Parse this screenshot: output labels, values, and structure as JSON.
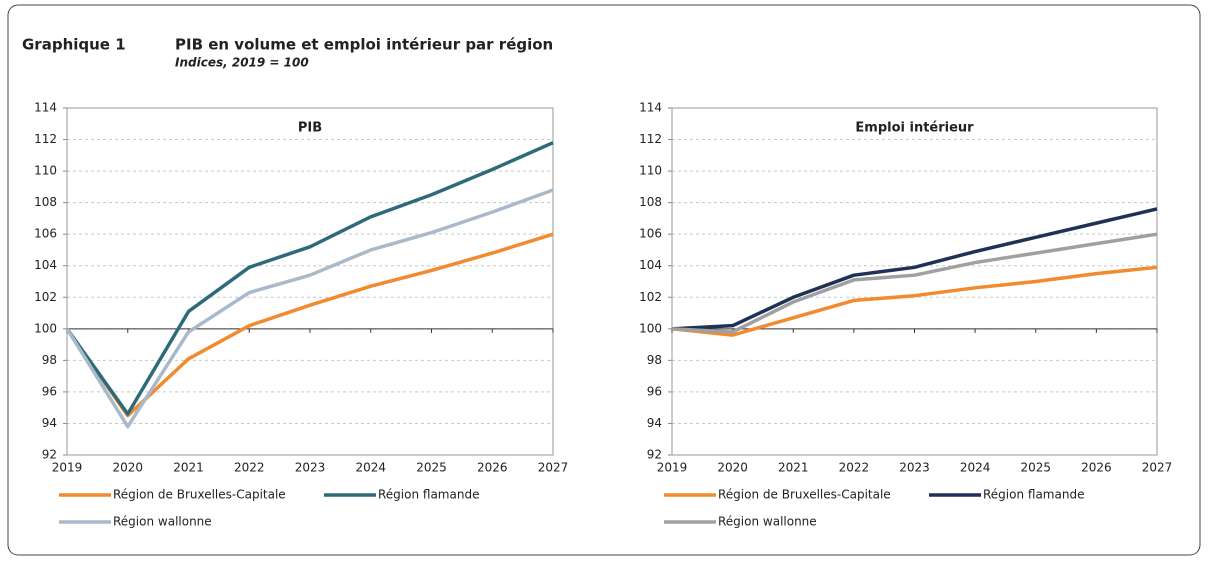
{
  "header": {
    "label": "Graphique 1",
    "title": "PIB en volume et emploi intérieur par région",
    "subtitle": "Indices, 2019 = 100"
  },
  "chart_data": [
    {
      "type": "line",
      "title": "PIB",
      "categories": [
        "2019",
        "2020",
        "2021",
        "2022",
        "2023",
        "2024",
        "2025",
        "2026",
        "2027"
      ],
      "ylim": [
        92,
        114
      ],
      "yticks": [
        92,
        94,
        96,
        98,
        100,
        102,
        104,
        106,
        108,
        110,
        112,
        114
      ],
      "grid": true,
      "x_axis_crossing": 100,
      "series": [
        {
          "name": "Région de Bruxelles-Capitale",
          "color": "#f28a30",
          "values": [
            100,
            94.5,
            98.1,
            100.2,
            101.5,
            102.7,
            103.7,
            104.8,
            106.0
          ]
        },
        {
          "name": "Région flamande",
          "color": "#2e6b7a",
          "values": [
            100,
            94.6,
            101.1,
            103.9,
            105.2,
            107.1,
            108.5,
            110.1,
            111.8
          ]
        },
        {
          "name": "Région wallonne",
          "color": "#aab9ca",
          "values": [
            100,
            93.8,
            99.8,
            102.3,
            103.4,
            105.0,
            106.1,
            107.4,
            108.8
          ]
        }
      ]
    },
    {
      "type": "line",
      "title": "Emploi intérieur",
      "categories": [
        "2019",
        "2020",
        "2021",
        "2022",
        "2023",
        "2024",
        "2025",
        "2026",
        "2027"
      ],
      "ylim": [
        92,
        114
      ],
      "yticks": [
        92,
        94,
        96,
        98,
        100,
        102,
        104,
        106,
        108,
        110,
        112,
        114
      ],
      "grid": true,
      "x_axis_crossing": 100,
      "series": [
        {
          "name": "Région de Bruxelles-Capitale",
          "color": "#f28a30",
          "values": [
            100,
            99.6,
            100.7,
            101.8,
            102.1,
            102.6,
            103.0,
            103.5,
            103.9
          ]
        },
        {
          "name": "Région flamande",
          "color": "#1f3154",
          "values": [
            100,
            100.2,
            102.0,
            103.4,
            103.9,
            104.9,
            105.8,
            106.7,
            107.6
          ]
        },
        {
          "name": "Région wallonne",
          "color": "#a0a0a0",
          "values": [
            100,
            99.8,
            101.7,
            103.1,
            103.4,
            104.2,
            104.8,
            105.4,
            106.0
          ]
        }
      ]
    }
  ]
}
